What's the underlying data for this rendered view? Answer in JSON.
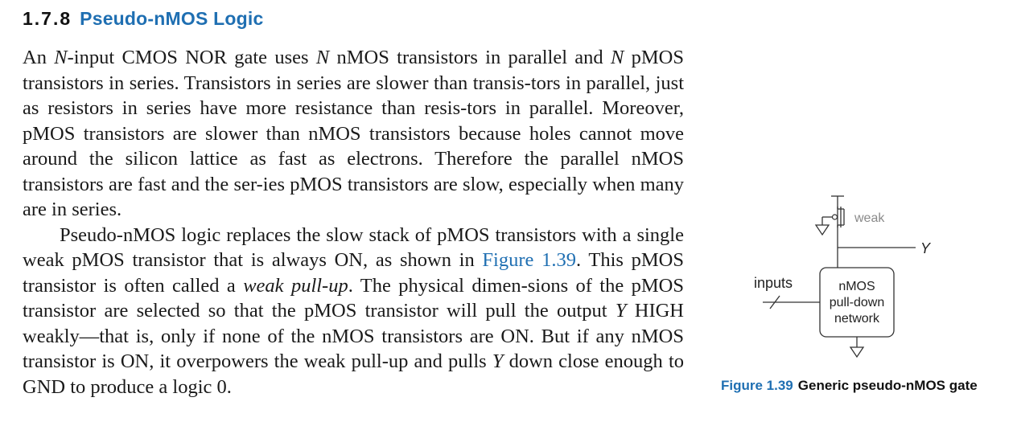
{
  "heading": {
    "number": "1.7.8",
    "title": "Pseudo-nMOS Logic"
  },
  "paragraph1": [
    {
      "t": "An "
    },
    {
      "t": "N",
      "i": true
    },
    {
      "t": "-input CMOS NOR gate uses "
    },
    {
      "t": "N",
      "i": true
    },
    {
      "t": " nMOS transistors in parallel and "
    },
    {
      "t": "N",
      "i": true
    },
    {
      "t": " pMOS transistors in series. Transistors in series are slower than transis-tors in parallel, just as resistors in series have more resistance than resis-tors in parallel. Moreover, pMOS transistors are slower than nMOS transistors because holes cannot move around the silicon lattice as fast as electrons. Therefore the parallel nMOS transistors are fast and the ser-ies pMOS transistors are slow, especially when many are in series."
    }
  ],
  "paragraph2": [
    {
      "t": "Pseudo-nMOS logic replaces the slow stack of pMOS transistors with a single weak pMOS transistor that is always ON, as shown in "
    },
    {
      "t": "Figure 1.39",
      "link": true
    },
    {
      "t": ". This pMOS transistor is often called a "
    },
    {
      "t": "weak pull-up",
      "i": true
    },
    {
      "t": ". The physical dimen-sions of the pMOS transistor are selected so that the pMOS transistor will pull the output "
    },
    {
      "t": "Y",
      "i": true
    },
    {
      "t": " HIGH weakly—that is, only if none of the nMOS transistors are ON. But if any nMOS transistor is ON, it overpowers the weak pull-up and pulls "
    },
    {
      "t": "Y",
      "i": true
    },
    {
      "t": " down close enough to GND to produce a logic 0."
    }
  ],
  "figure": {
    "weak_label": "weak",
    "output_label": "Y",
    "inputs_label": "inputs",
    "block_lines": [
      "nMOS",
      "pull-down",
      "network"
    ],
    "caption_number": "Figure 1.39",
    "caption_text": "Generic pseudo-nMOS gate"
  }
}
